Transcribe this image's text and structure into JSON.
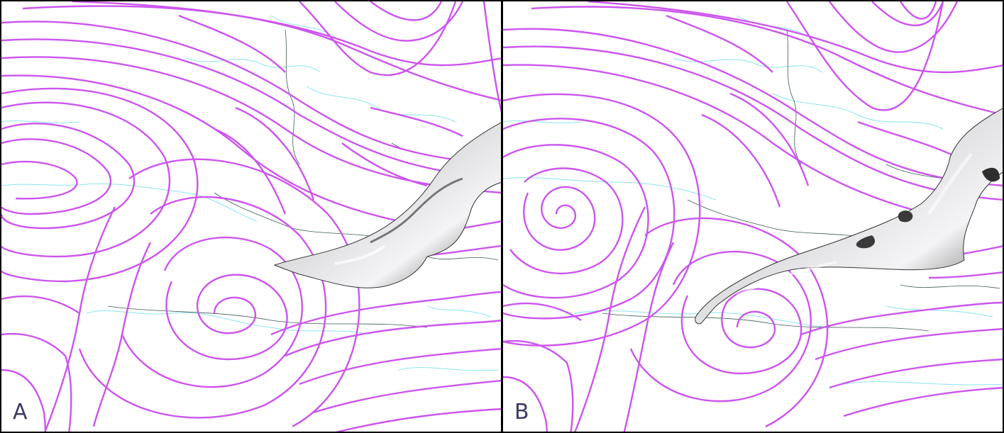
{
  "panels": [
    {
      "id": "A",
      "label": "A"
    },
    {
      "id": "B",
      "label": "B"
    }
  ],
  "colors": {
    "streamline": "#cc55ee",
    "coastline": "#7ee0ee",
    "border": "#3f5a5a",
    "surface_light": "#f2f2f4",
    "surface_dark": "#4a4a4a",
    "frame": "#000000",
    "label": "#3d3a66"
  }
}
